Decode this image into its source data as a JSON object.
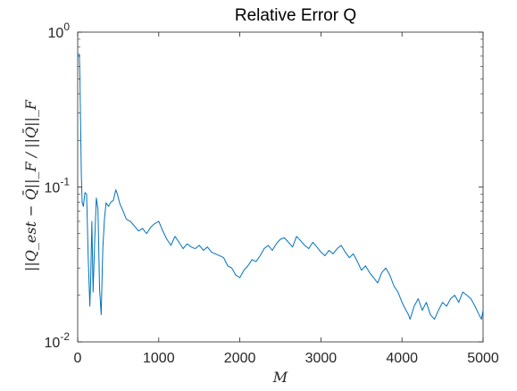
{
  "chart_data": {
    "type": "line",
    "title": "Relative Error Q",
    "xlabel": "M",
    "ylabel": "||Q_est − Q̄||_F / ||Q̄||_F",
    "xlim": [
      0,
      5000
    ],
    "ylim": [
      0.01,
      1
    ],
    "yscale": "log",
    "grid": false,
    "x_ticks": [
      "0",
      "1000",
      "2000",
      "3000",
      "4000",
      "5000"
    ],
    "y_ticks": [
      {
        "base": "10",
        "exp": "-2"
      },
      {
        "base": "10",
        "exp": "-1"
      },
      {
        "base": "10",
        "exp": "0"
      }
    ],
    "series": [
      {
        "color": "#0072BD",
        "x": [
          1,
          10,
          20,
          28,
          32,
          38,
          45,
          55,
          70,
          90,
          110,
          130,
          150,
          160,
          175,
          190,
          210,
          230,
          250,
          270,
          290,
          310,
          330,
          350,
          380,
          410,
          440,
          470,
          490,
          520,
          560,
          600,
          650,
          700,
          750,
          800,
          850,
          900,
          950,
          1000,
          1050,
          1100,
          1150,
          1200,
          1250,
          1300,
          1350,
          1400,
          1450,
          1500,
          1550,
          1600,
          1650,
          1700,
          1750,
          1800,
          1850,
          1900,
          1950,
          2000,
          2050,
          2100,
          2150,
          2200,
          2250,
          2300,
          2350,
          2400,
          2450,
          2500,
          2550,
          2600,
          2650,
          2700,
          2750,
          2800,
          2850,
          2900,
          2950,
          3000,
          3050,
          3100,
          3150,
          3200,
          3250,
          3300,
          3350,
          3400,
          3450,
          3500,
          3550,
          3600,
          3650,
          3700,
          3750,
          3800,
          3850,
          3900,
          3950,
          4000,
          4050,
          4080,
          4100,
          4150,
          4200,
          4250,
          4300,
          4350,
          4400,
          4450,
          4500,
          4550,
          4600,
          4650,
          4700,
          4750,
          4800,
          4850,
          4900,
          4950,
          4980,
          5000
        ],
        "y": [
          0.72,
          0.72,
          0.72,
          0.5,
          0.35,
          0.22,
          0.12,
          0.08,
          0.075,
          0.092,
          0.09,
          0.035,
          0.017,
          0.025,
          0.06,
          0.021,
          0.045,
          0.085,
          0.072,
          0.022,
          0.015,
          0.04,
          0.062,
          0.079,
          0.075,
          0.08,
          0.082,
          0.096,
          0.09,
          0.078,
          0.07,
          0.062,
          0.06,
          0.056,
          0.052,
          0.054,
          0.05,
          0.055,
          0.058,
          0.06,
          0.052,
          0.046,
          0.042,
          0.048,
          0.044,
          0.04,
          0.043,
          0.041,
          0.04,
          0.042,
          0.039,
          0.041,
          0.038,
          0.037,
          0.036,
          0.035,
          0.031,
          0.03,
          0.027,
          0.026,
          0.029,
          0.031,
          0.034,
          0.033,
          0.036,
          0.04,
          0.042,
          0.039,
          0.043,
          0.046,
          0.047,
          0.044,
          0.041,
          0.048,
          0.045,
          0.042,
          0.04,
          0.044,
          0.041,
          0.038,
          0.036,
          0.039,
          0.037,
          0.04,
          0.042,
          0.038,
          0.035,
          0.037,
          0.033,
          0.029,
          0.031,
          0.028,
          0.026,
          0.024,
          0.028,
          0.03,
          0.027,
          0.023,
          0.021,
          0.018,
          0.016,
          0.015,
          0.014,
          0.017,
          0.019,
          0.016,
          0.018,
          0.015,
          0.014,
          0.016,
          0.018,
          0.017,
          0.019,
          0.02,
          0.018,
          0.021,
          0.02,
          0.019,
          0.017,
          0.015,
          0.014,
          0.016
        ]
      }
    ]
  }
}
